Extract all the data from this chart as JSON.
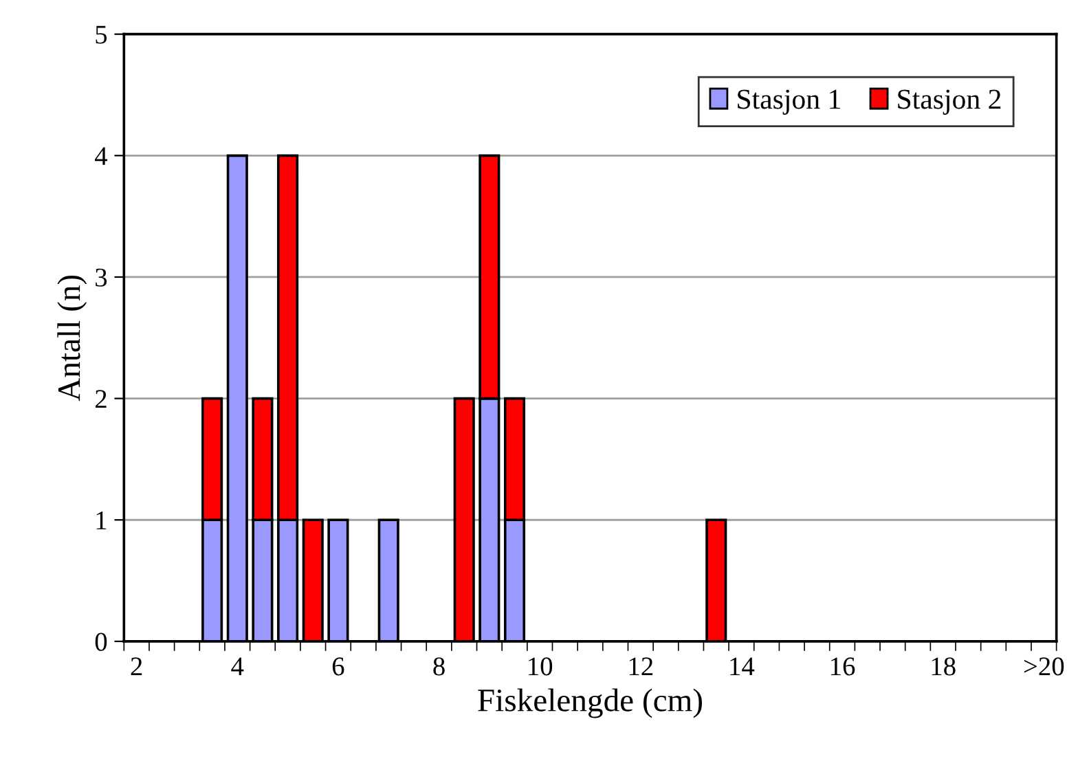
{
  "chart_data": {
    "type": "bar",
    "stacked": true,
    "xlabel": "Fiskelengde (cm)",
    "ylabel": "Antall (n)",
    "categories": [
      "2",
      null,
      null,
      null,
      "4",
      null,
      null,
      null,
      "6",
      null,
      null,
      null,
      "8",
      null,
      null,
      null,
      "10",
      null,
      null,
      null,
      "12",
      null,
      null,
      null,
      "14",
      null,
      null,
      null,
      "16",
      null,
      null,
      null,
      "18",
      null,
      null,
      null,
      ">20"
    ],
    "series": [
      {
        "name": "Stasjon 1",
        "color": "#9999ff",
        "values": [
          0,
          0,
          0,
          1,
          4,
          1,
          1,
          0,
          1,
          0,
          1,
          0,
          0,
          0,
          2,
          1,
          0,
          0,
          0,
          0,
          0,
          0,
          0,
          0,
          0,
          0,
          0,
          0,
          0,
          0,
          0,
          0,
          0,
          0,
          0,
          0,
          0
        ]
      },
      {
        "name": "Stasjon 2",
        "color": "#ff0000",
        "values": [
          0,
          0,
          0,
          1,
          0,
          1,
          3,
          1,
          0,
          0,
          0,
          0,
          0,
          2,
          2,
          1,
          0,
          0,
          0,
          0,
          0,
          0,
          0,
          1,
          0,
          0,
          0,
          0,
          0,
          0,
          0,
          0,
          0,
          0,
          0,
          0,
          0
        ]
      }
    ],
    "ylim": [
      0,
      5
    ],
    "yticks": [
      0,
      1,
      2,
      3,
      4,
      5
    ],
    "grid": "y",
    "legend": "top right"
  }
}
